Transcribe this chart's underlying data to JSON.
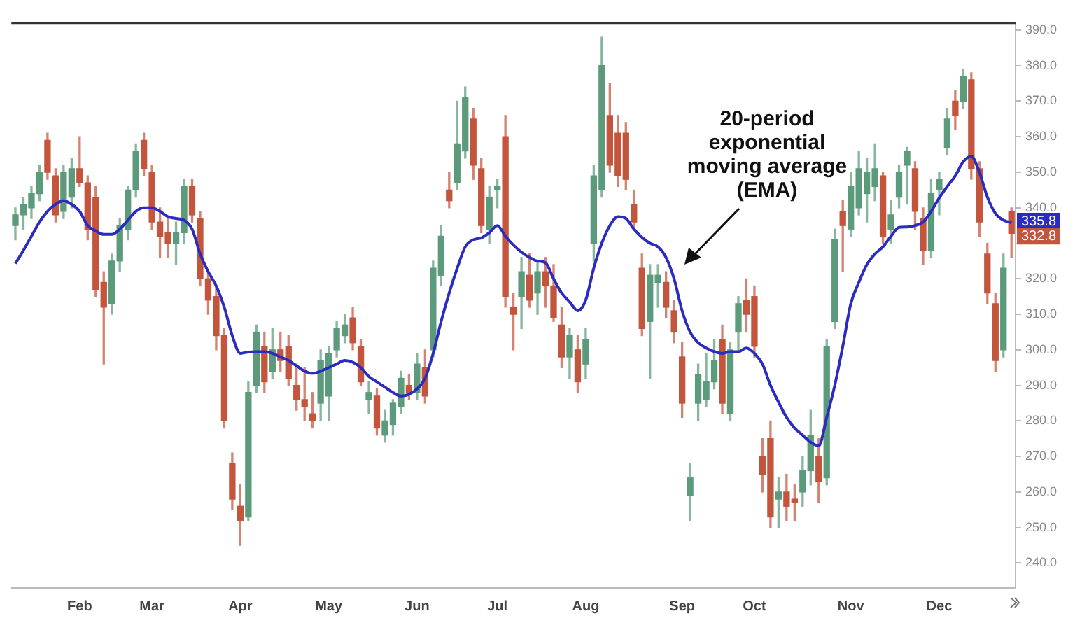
{
  "chart_data": {
    "type": "candlestick",
    "categories": [
      null,
      null,
      null,
      null,
      null,
      null,
      null,
      null,
      "Feb",
      null,
      null,
      null,
      null,
      null,
      null,
      null,
      null,
      "Mar",
      null,
      null,
      null,
      null,
      null,
      null,
      null,
      null,
      null,
      null,
      "Apr",
      null,
      null,
      null,
      null,
      null,
      null,
      null,
      null,
      null,
      null,
      "May",
      null,
      null,
      null,
      null,
      null,
      null,
      null,
      null,
      null,
      null,
      "Jun",
      null,
      null,
      null,
      null,
      null,
      null,
      null,
      null,
      null,
      "Jul",
      null,
      null,
      null,
      null,
      null,
      null,
      null,
      null,
      null,
      null,
      "Aug",
      null,
      null,
      null,
      null,
      null,
      null,
      null,
      null,
      null,
      null,
      null,
      "Sep",
      null,
      null,
      null,
      null,
      null,
      null,
      null,
      null,
      "Oct",
      null,
      null,
      null,
      null,
      null,
      null,
      null,
      null,
      null,
      null,
      null,
      "Nov",
      null,
      null,
      null,
      null,
      null,
      null,
      null,
      null,
      null,
      null,
      "Dec",
      null,
      null,
      null,
      null,
      null,
      null,
      null,
      null,
      null
    ],
    "series": [
      {
        "ohlc": [
          [
            335,
            340,
            331,
            338
          ],
          [
            338,
            343,
            334,
            341
          ],
          [
            340,
            346,
            337,
            344
          ],
          [
            344,
            352,
            342,
            350
          ],
          [
            359,
            361,
            348,
            350
          ],
          [
            349,
            351,
            336,
            338
          ],
          [
            339,
            352,
            337,
            350
          ],
          [
            343,
            354,
            340,
            351
          ],
          [
            351,
            360,
            346,
            347
          ],
          [
            347,
            349,
            331,
            334
          ],
          [
            343,
            346,
            315,
            317
          ],
          [
            319,
            322,
            296,
            312
          ],
          [
            313,
            327,
            310,
            325
          ],
          [
            325,
            337,
            322,
            335
          ],
          [
            334,
            346,
            331,
            345
          ],
          [
            345,
            358,
            343,
            356
          ],
          [
            359,
            361,
            349,
            351
          ],
          [
            350,
            352,
            334,
            336
          ],
          [
            336,
            340,
            326,
            332
          ],
          [
            333,
            337,
            326,
            330
          ],
          [
            330,
            336,
            324,
            333
          ],
          [
            333,
            348,
            330,
            346
          ],
          [
            346,
            348,
            336,
            338
          ],
          [
            337,
            339,
            318,
            320
          ],
          [
            320,
            322,
            310,
            314
          ],
          [
            315,
            318,
            300,
            304
          ],
          [
            304,
            306,
            278,
            280
          ],
          [
            268,
            271,
            255,
            258
          ],
          [
            256,
            262,
            245,
            252
          ],
          [
            253,
            291,
            252,
            288
          ],
          [
            290,
            307,
            288,
            305
          ],
          [
            301,
            305,
            288,
            291
          ],
          [
            294,
            306,
            292,
            300
          ],
          [
            300,
            305,
            294,
            297
          ],
          [
            301,
            304,
            290,
            292
          ],
          [
            290,
            296,
            283,
            286
          ],
          [
            286,
            295,
            280,
            284
          ],
          [
            282,
            288,
            278,
            280
          ],
          [
            285,
            300,
            280,
            297
          ],
          [
            287,
            301,
            280,
            299
          ],
          [
            300,
            308,
            298,
            306
          ],
          [
            304,
            310,
            302,
            307
          ],
          [
            309,
            312,
            300,
            302
          ],
          [
            301,
            303,
            290,
            291
          ],
          [
            286,
            291,
            282,
            288
          ],
          [
            287,
            289,
            276,
            278
          ],
          [
            276,
            283,
            274,
            280
          ],
          [
            279,
            286,
            276,
            285
          ],
          [
            284,
            294,
            282,
            292
          ],
          [
            290,
            293,
            286,
            288
          ],
          [
            288,
            299,
            286,
            296
          ],
          [
            295,
            300,
            285,
            287
          ],
          [
            300,
            325,
            298,
            323
          ],
          [
            321,
            335,
            318,
            332
          ],
          [
            345,
            350,
            340,
            342
          ],
          [
            347,
            370,
            345,
            358
          ],
          [
            356,
            374,
            354,
            371
          ],
          [
            365,
            368,
            348,
            352
          ],
          [
            351,
            354,
            333,
            335
          ],
          [
            334,
            346,
            330,
            343
          ],
          [
            345,
            348,
            340,
            346
          ],
          [
            360,
            366,
            312,
            315
          ],
          [
            312,
            316,
            300,
            310
          ],
          [
            315,
            326,
            306,
            322
          ],
          [
            321,
            327,
            312,
            314
          ],
          [
            316,
            325,
            310,
            322
          ],
          [
            322,
            326,
            312,
            318
          ],
          [
            318,
            324,
            308,
            309
          ],
          [
            307,
            312,
            295,
            298
          ],
          [
            298,
            306,
            292,
            304
          ],
          [
            300,
            304,
            288,
            291
          ],
          [
            296,
            306,
            292,
            303
          ],
          [
            330,
            352,
            325,
            349
          ],
          [
            345,
            388,
            343,
            380
          ],
          [
            366,
            375,
            350,
            352
          ],
          [
            361,
            366,
            346,
            349
          ],
          [
            361,
            364,
            345,
            348
          ],
          [
            341,
            345,
            334,
            336
          ],
          [
            323,
            327,
            304,
            306
          ],
          [
            308,
            324,
            292,
            321
          ],
          [
            319,
            324,
            312,
            321
          ],
          [
            319,
            322,
            309,
            312
          ],
          [
            311,
            314,
            302,
            305
          ],
          [
            298,
            302,
            281,
            285
          ],
          [
            259,
            268,
            252,
            264
          ],
          [
            285,
            296,
            280,
            293
          ],
          [
            286,
            299,
            284,
            291
          ],
          [
            291,
            303,
            289,
            297
          ],
          [
            303,
            307,
            282,
            285
          ],
          [
            282,
            302,
            280,
            300
          ],
          [
            305,
            315,
            300,
            313
          ],
          [
            314,
            320,
            305,
            310
          ],
          [
            315,
            318,
            298,
            301
          ],
          [
            270,
            275,
            260,
            265
          ],
          [
            275,
            280,
            250,
            253
          ],
          [
            258,
            264,
            250,
            260
          ],
          [
            260,
            265,
            252,
            256
          ],
          [
            258,
            262,
            252,
            257
          ],
          [
            260,
            270,
            256,
            266
          ],
          [
            266,
            283,
            262,
            276
          ],
          [
            270,
            275,
            257,
            263
          ],
          [
            264,
            303,
            262,
            301
          ],
          [
            308,
            334,
            306,
            331
          ],
          [
            339,
            342,
            322,
            335
          ],
          [
            334,
            350,
            332,
            346
          ],
          [
            340,
            356,
            338,
            351
          ],
          [
            344,
            354,
            336,
            350
          ],
          [
            346,
            358,
            342,
            351
          ],
          [
            349,
            350,
            330,
            332
          ],
          [
            334,
            342,
            330,
            338
          ],
          [
            343,
            352,
            340,
            350
          ],
          [
            352,
            357,
            341,
            356
          ],
          [
            351,
            353,
            334,
            339
          ],
          [
            337,
            340,
            324,
            328
          ],
          [
            328,
            348,
            326,
            344
          ],
          [
            345,
            350,
            338,
            348
          ],
          [
            357,
            368,
            355,
            365
          ],
          [
            370,
            373,
            362,
            366
          ],
          [
            370,
            379,
            368,
            377
          ],
          [
            376,
            378,
            348,
            351
          ],
          [
            351,
            353,
            332,
            336
          ],
          [
            327,
            330,
            313,
            316
          ],
          [
            313,
            316,
            294,
            297
          ],
          [
            300,
            327,
            298,
            323
          ],
          [
            339,
            340,
            326,
            332.8
          ]
        ]
      },
      {
        "type": "line",
        "color": "#2b2bc0",
        "values": [
          324.3,
          328,
          332,
          336,
          339,
          341,
          342,
          341,
          339,
          335,
          333.5,
          332.5,
          332.5,
          334,
          336.5,
          339,
          340,
          340,
          339,
          337.5,
          337,
          336.5,
          334,
          327,
          322,
          318,
          312,
          304,
          299,
          299.4,
          299.5,
          299.5,
          299,
          298,
          297,
          295.5,
          294,
          293.4,
          294,
          295,
          296,
          297,
          296.5,
          295,
          292.5,
          291,
          289.5,
          288,
          287,
          287.5,
          289,
          292,
          299,
          308,
          316,
          323,
          329,
          331,
          331.5,
          333,
          335,
          332,
          329.5,
          327.5,
          326,
          325,
          324.5,
          320,
          316,
          313.5,
          311,
          314,
          323,
          330,
          335,
          337.5,
          337,
          334,
          331.7,
          330,
          329,
          326,
          320,
          311,
          305,
          302,
          300.5,
          299.5,
          299,
          299.5,
          299.5,
          300.5,
          299,
          296,
          290,
          285.3,
          281,
          278,
          276,
          274,
          273,
          281,
          290,
          301,
          313,
          319,
          324,
          327,
          329,
          332,
          334.5,
          334.6,
          335,
          336,
          339,
          342.8,
          346,
          349,
          353,
          354.5,
          350,
          343,
          338.4,
          336.5,
          335.8
        ]
      }
    ],
    "ylim": [
      233,
      392
    ],
    "yticks": [
      {
        "value": 240,
        "label": "240.0"
      },
      {
        "value": 250,
        "label": "250.0"
      },
      {
        "value": 260,
        "label": "260.0"
      },
      {
        "value": 270,
        "label": "270.0"
      },
      {
        "value": 280,
        "label": "280.0"
      },
      {
        "value": 290,
        "label": "290.0"
      },
      {
        "value": 300,
        "label": "300.0"
      },
      {
        "value": 310,
        "label": "310.0"
      },
      {
        "value": 320,
        "label": "320.0"
      },
      {
        "value": 330,
        "label": null
      },
      {
        "value": 340,
        "label": "340.0"
      },
      {
        "value": 350,
        "label": "350.0"
      },
      {
        "value": 360,
        "label": "360.0"
      },
      {
        "value": 370,
        "label": "370.0"
      },
      {
        "value": 380,
        "label": "380.0"
      },
      {
        "value": 390,
        "label": "390.0"
      }
    ],
    "annotations": [
      "20-period exponential moving average (EMA)",
      "335.8",
      "332.8"
    ]
  }
}
